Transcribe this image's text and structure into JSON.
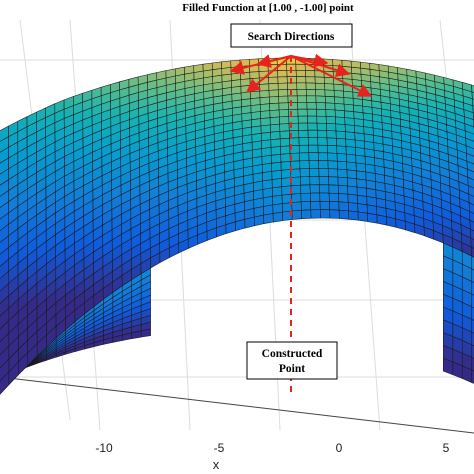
{
  "chart_data": {
    "type": "surface3d",
    "title": "Filled Function at [1.00 , -1.00] point",
    "xlabel": "x",
    "x_ticks": [
      -10,
      -5,
      0,
      5
    ],
    "colormap": "parula",
    "annotations": {
      "search": "Search Directions",
      "constructed": [
        "Constructed",
        "Point"
      ]
    },
    "arrow_color": "#e8231e",
    "search_arrow_count": 6,
    "constructed_point_x": -3.5
  }
}
